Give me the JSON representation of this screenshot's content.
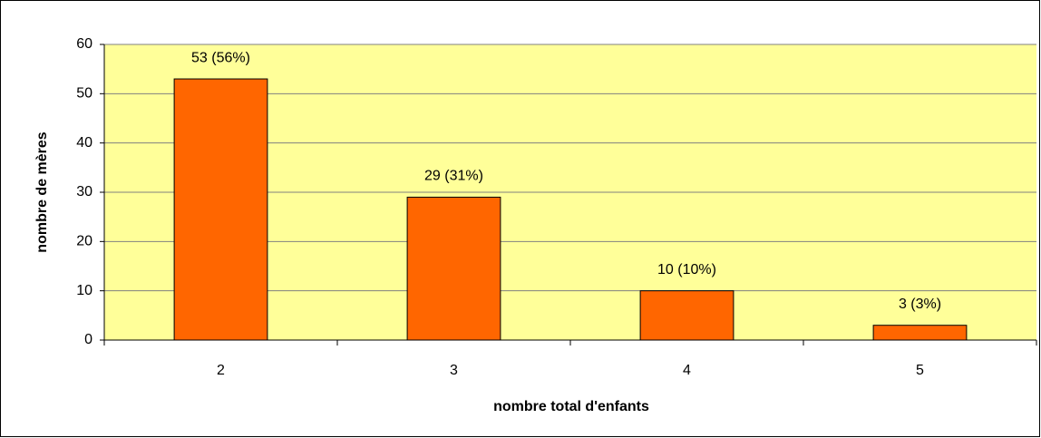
{
  "chart_data": {
    "type": "bar",
    "categories": [
      "2",
      "3",
      "4",
      "5"
    ],
    "values": [
      53,
      29,
      10,
      3
    ],
    "value_labels": [
      "53 (56%)",
      "29 (31%)",
      "10 (10%)",
      "3 (3%)"
    ],
    "color": "#ff6600",
    "x_label": "nombre total d'enfants",
    "y_label": "nombre de mères",
    "ylim": [
      0,
      60
    ],
    "yticks": [
      0,
      10,
      20,
      30,
      40,
      50,
      60
    ],
    "grid": true
  }
}
